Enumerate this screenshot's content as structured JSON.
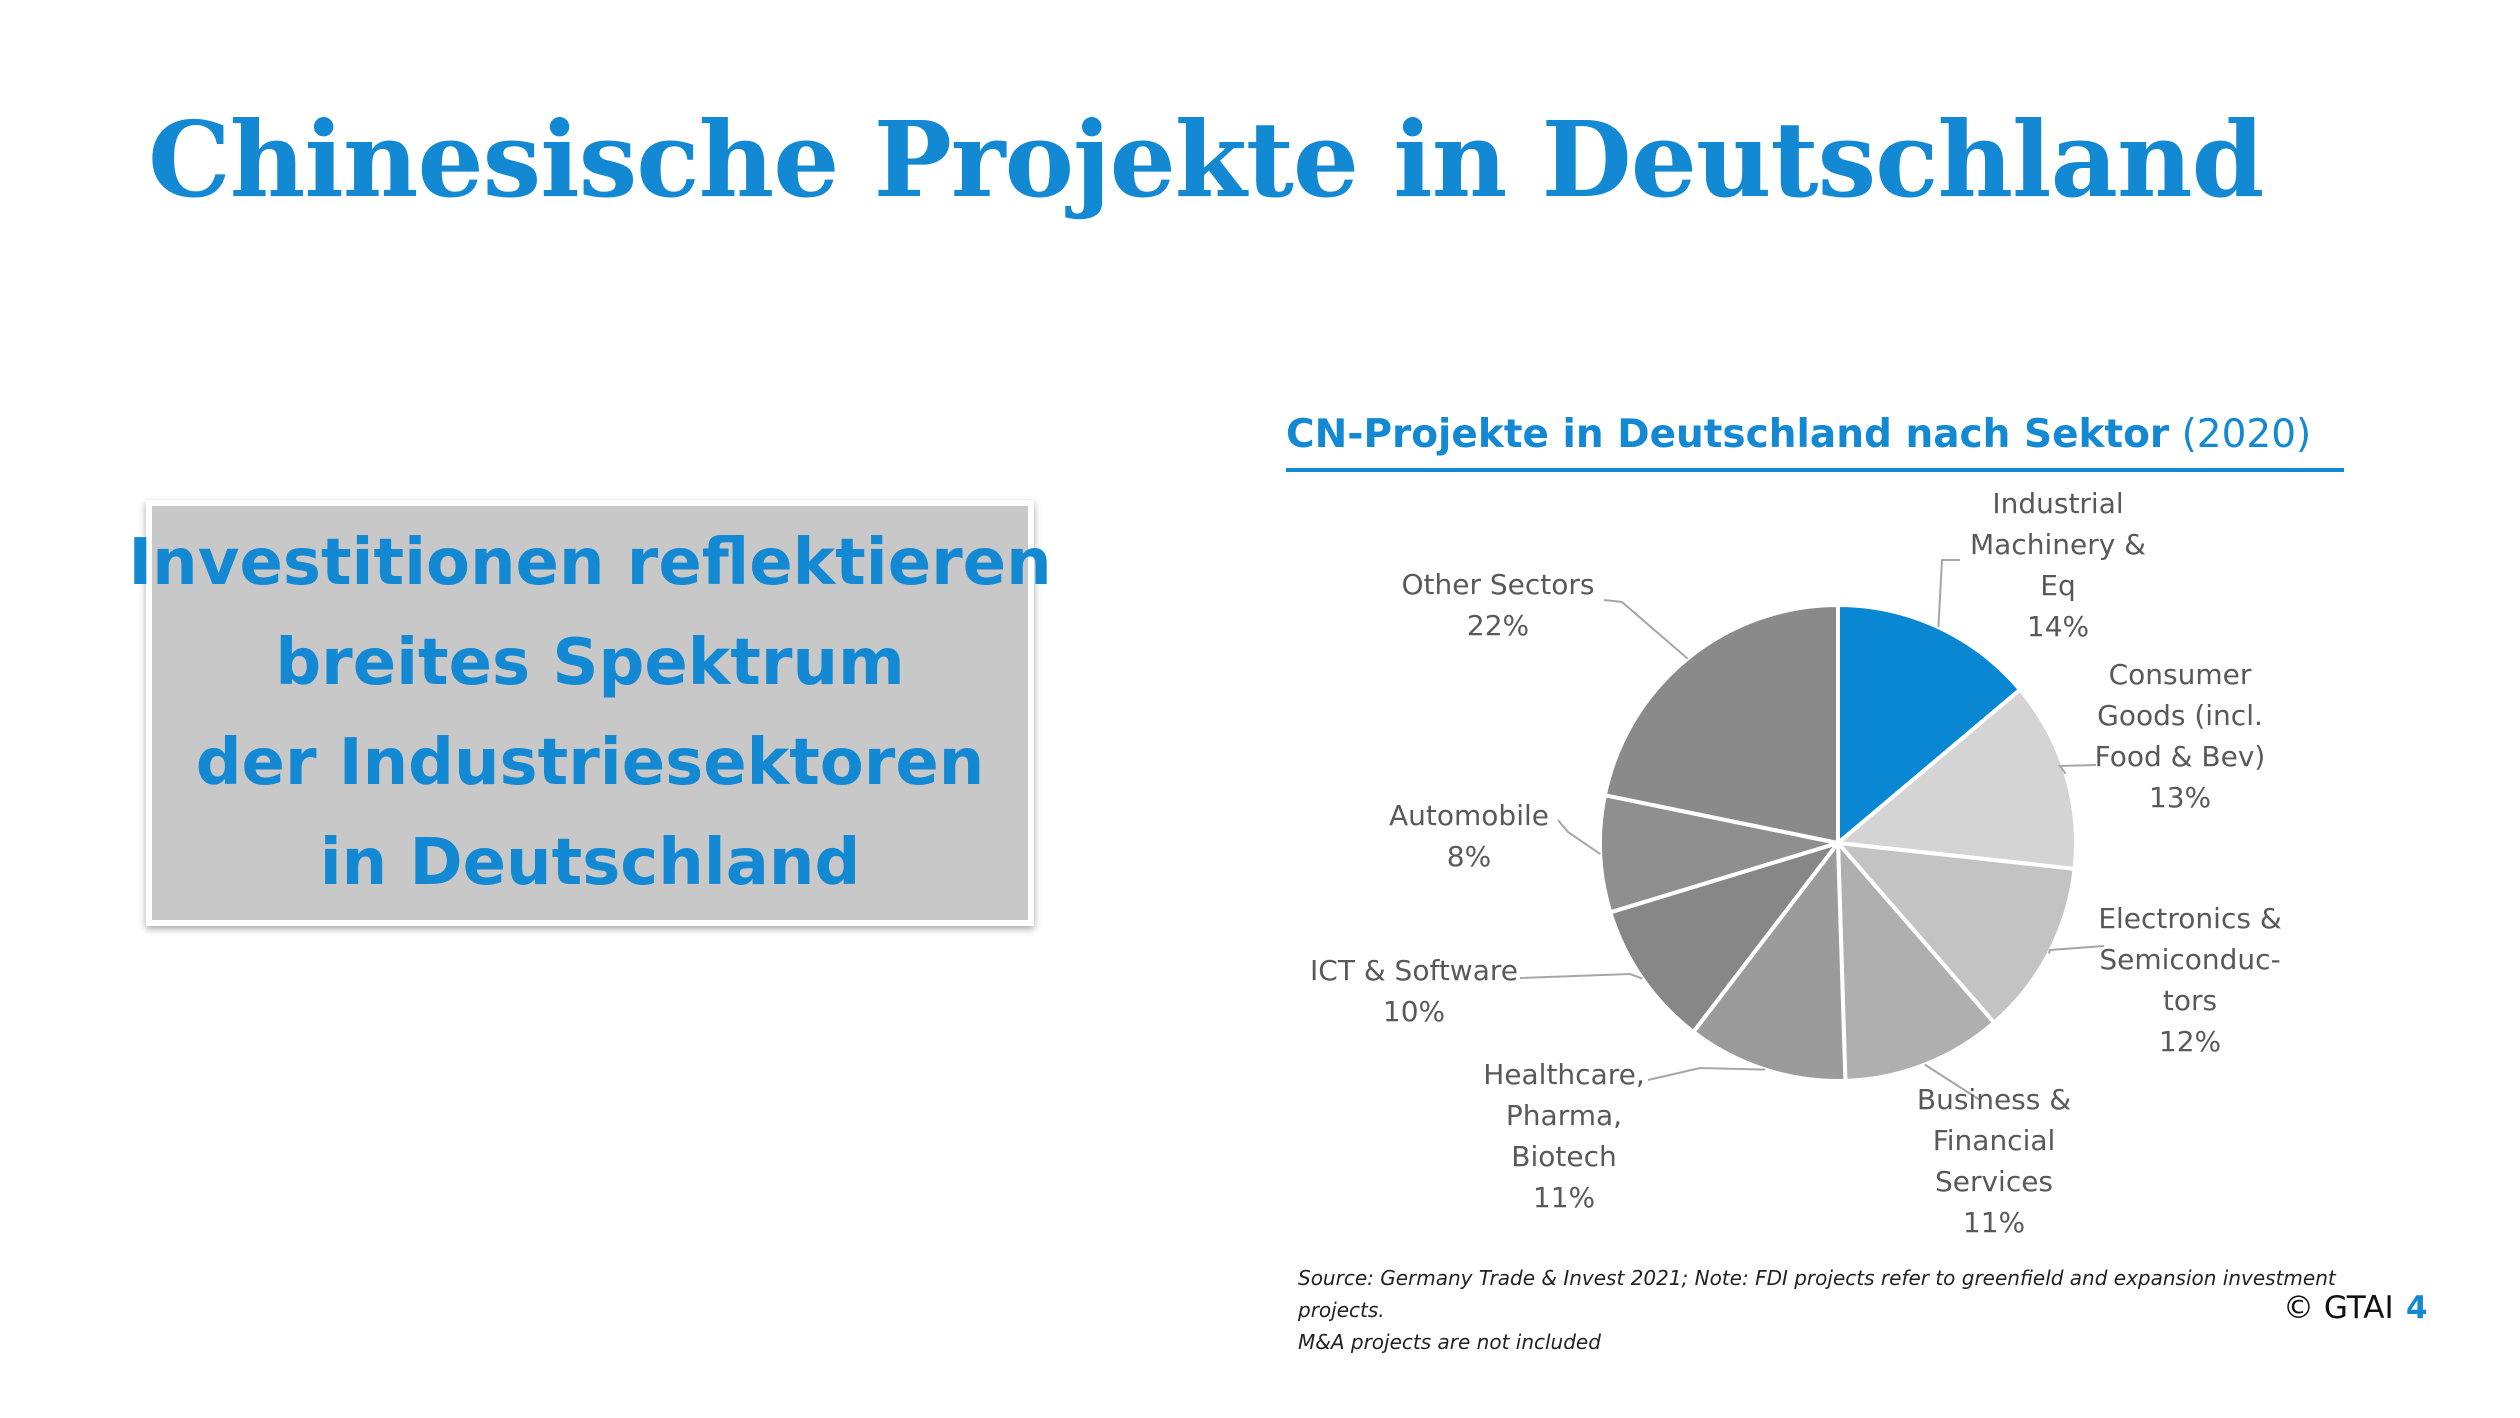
{
  "slide": {
    "title": "Chinesische Projekte in Deutschland",
    "callout_lines": [
      "Investitionen reflektieren",
      "breites Spektrum",
      "der Industriesektoren",
      "in Deutschland"
    ],
    "footer": {
      "source_line1": "Source: Germany Trade & Invest 2021; Note: FDI projects refer to greenfield and expansion investment projects.",
      "source_line2": "M&A projects are not included",
      "copyright": "© GTAI",
      "page_number": "4"
    }
  },
  "chart_data": {
    "type": "pie",
    "title": "CN-Projekte in Deutschland nach Sektor",
    "title_suffix": "(2020)",
    "unit": "%",
    "start": "12 o'clock, clockwise",
    "slices": [
      {
        "lines": [
          "Industrial",
          "Machinery &",
          "Eq"
        ],
        "value_label": "14%",
        "value": 14,
        "color": "#0a87d2"
      },
      {
        "lines": [
          "Consumer",
          "Goods (incl.",
          "Food & Bev)"
        ],
        "value_label": "13%",
        "value": 13,
        "color": "#d4d4d4"
      },
      {
        "lines": [
          "Electronics &",
          "Semiconduc-",
          "tors"
        ],
        "value_label": "12%",
        "value": 12,
        "color": "#c3c3c3"
      },
      {
        "lines": [
          "Business &",
          "Financial",
          "Services"
        ],
        "value_label": "11%",
        "value": 11,
        "color": "#afafaf"
      },
      {
        "lines": [
          "Healthcare,",
          "Pharma,",
          "Biotech"
        ],
        "value_label": "11%",
        "value": 11,
        "color": "#9b9b9b"
      },
      {
        "lines": [
          "ICT & Software"
        ],
        "value_label": "10%",
        "value": 10,
        "color": "#878787"
      },
      {
        "lines": [
          "Automobile"
        ],
        "value_label": "8%",
        "value": 8,
        "color": "#8f8f8f"
      },
      {
        "lines": [
          "Other Sectors"
        ],
        "value_label": "22%",
        "value": 22,
        "color": "#8a8a8a"
      }
    ]
  }
}
